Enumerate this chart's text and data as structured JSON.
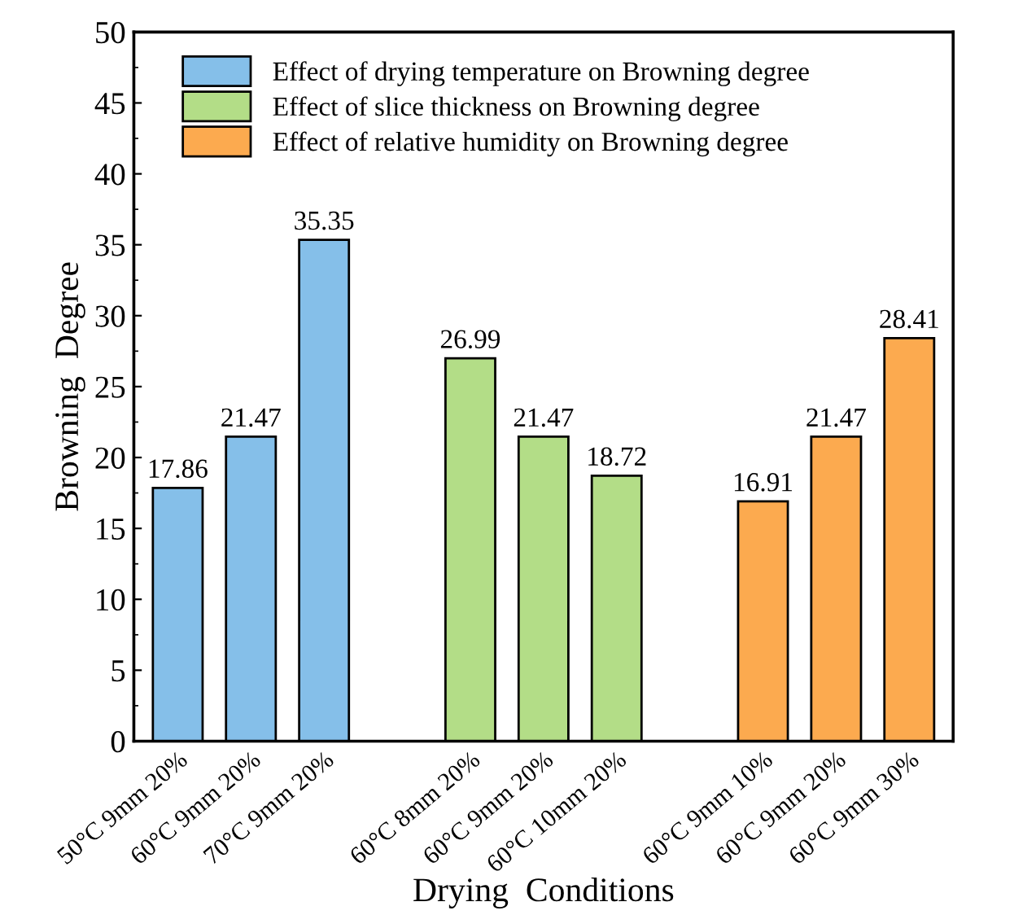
{
  "chart_data": {
    "type": "bar",
    "xlabel": "Drying  Conditions",
    "ylabel": "Browning  Degree",
    "categories": [
      "50°C 9mm 20%",
      "60°C 9mm 20%",
      "70°C 9mm 20%",
      null,
      "60°C 8mm 20%",
      "60°C 9mm 20%",
      "60°C 10mm 20%",
      null,
      "60°C 9mm 10%",
      "60°C 9mm 20%",
      "60°C 9mm 30%"
    ],
    "series": [
      {
        "name": "Effect of drying temperature on Browning degree",
        "color": "#85bfe9",
        "values": [
          17.86,
          21.47,
          35.35,
          null,
          null,
          null,
          null,
          null,
          null,
          null,
          null
        ]
      },
      {
        "name": "Effect of slice thickness on Browning degree",
        "color": "#b3dd87",
        "values": [
          null,
          null,
          null,
          null,
          26.99,
          21.47,
          18.72,
          null,
          null,
          null,
          null
        ]
      },
      {
        "name": "Effect of relative humidity on Browning degree",
        "color": "#fcaa4f",
        "values": [
          null,
          null,
          null,
          null,
          null,
          null,
          null,
          null,
          16.91,
          21.47,
          28.41
        ]
      }
    ],
    "ylim": [
      0,
      50
    ],
    "yticks": [
      0,
      5,
      10,
      15,
      20,
      25,
      30,
      35,
      40,
      45,
      50
    ],
    "data_labels": true,
    "legend": "top left",
    "grid": false
  }
}
